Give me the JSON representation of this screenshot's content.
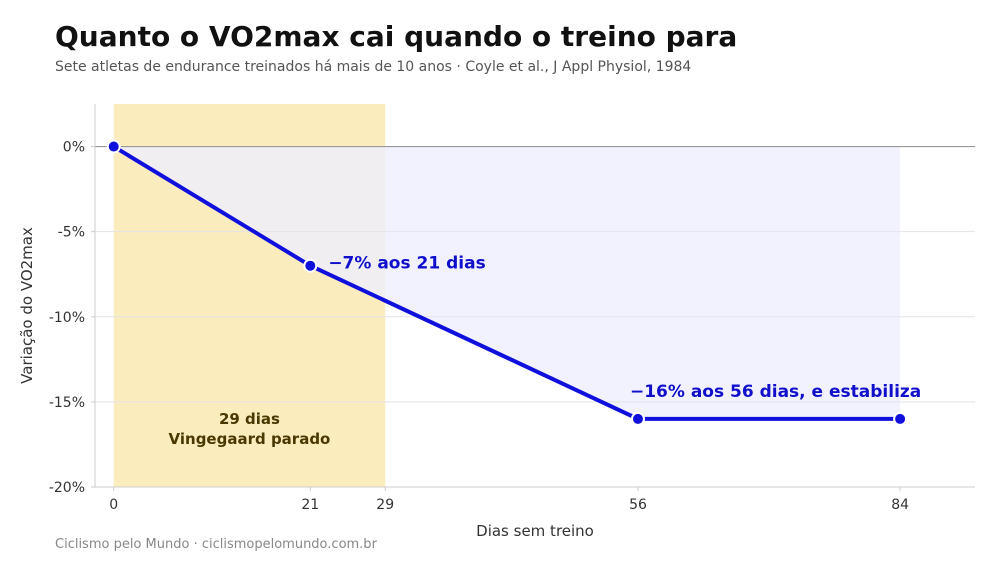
{
  "header": {
    "title": "Quanto o VO2max cai quando o treino para",
    "subtitle": "Sete atletas de endurance treinados há mais de 10 anos · Coyle et al., J Appl Physiol, 1984"
  },
  "footer": {
    "credit": "Ciclismo pelo Mundo · ciclismopelomundo.com.br"
  },
  "colors": {
    "line": "#1010dd",
    "highlight": "#fbecbe",
    "area": "#efefff",
    "annotation": "#1010cc",
    "highlight_text": "#4a3800"
  },
  "chart_data": {
    "type": "line",
    "xlabel": "Dias sem treino",
    "ylabel": "Variação do VO2max",
    "x": [
      0,
      21,
      56,
      84
    ],
    "values": [
      0,
      -7,
      -16,
      -16
    ],
    "xlim": [
      -2,
      92
    ],
    "ylim": [
      -20,
      2.5
    ],
    "xticks": [
      0,
      21,
      29,
      56,
      84
    ],
    "xtick_labels": [
      "0",
      "21",
      "29",
      "56",
      "84"
    ],
    "yticks": [
      0,
      -5,
      -10,
      -15,
      -20
    ],
    "ytick_labels": [
      "0%",
      "-5%",
      "-10%",
      "-15%",
      "-20%"
    ],
    "grid": true,
    "highlight_region": {
      "x_start": 0,
      "x_end": 29,
      "label_line1": "29 dias",
      "label_line2": "Vingegaard parado"
    },
    "annotations": [
      {
        "text": "−7% aos 21 dias",
        "x": 21,
        "y": -7
      },
      {
        "text": "−16% aos 56 dias, e estabiliza",
        "x": 56,
        "y": -16
      }
    ]
  }
}
